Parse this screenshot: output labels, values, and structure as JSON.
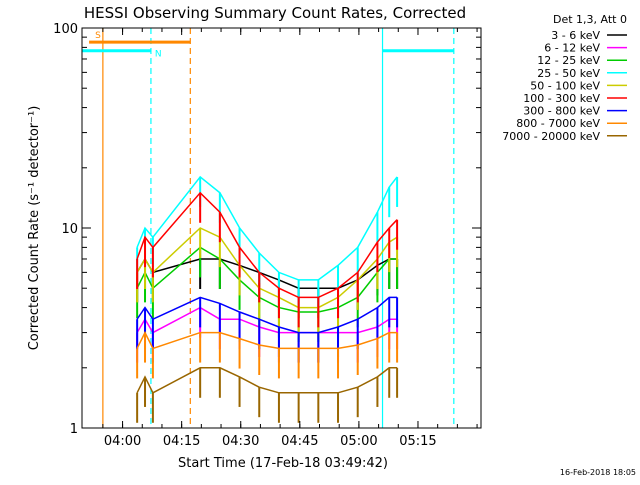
{
  "chart_data": {
    "type": "line",
    "title": "HESSI Observing Summary Count Rates, Corrected",
    "ylabel": "Corrected Count Rate (s⁻¹ detector⁻¹)",
    "xlabel": "Start Time (17-Feb-18 03:49:42)",
    "footer": "16-Feb-2018 18:05",
    "y_scale": "log",
    "ylim": [
      1,
      100
    ],
    "y_ticks": [
      {
        "value": 1,
        "label": "1"
      },
      {
        "value": 10,
        "label": "10"
      },
      {
        "value": 100,
        "label": "100"
      }
    ],
    "x_unit": "minutes after 03:49:42",
    "xlim": [
      0,
      101.3
    ],
    "x_ticks": [
      {
        "value": 10.3,
        "label": "04:00"
      },
      {
        "value": 25.3,
        "label": "04:15"
      },
      {
        "value": 40.3,
        "label": "04:30"
      },
      {
        "value": 55.3,
        "label": "04:45"
      },
      {
        "value": 70.3,
        "label": "05:00"
      },
      {
        "value": 85.3,
        "label": "05:15"
      }
    ],
    "legend": {
      "placement": "right",
      "header": "Det 1,3, Att 0",
      "entries": [
        {
          "label": "3 - 6 keV",
          "color": "#000000"
        },
        {
          "label": "6 - 12 keV",
          "color": "#ff00ff"
        },
        {
          "label": "12 - 25 keV",
          "color": "#00cc00"
        },
        {
          "label": "25 - 50 keV",
          "color": "#00ffff"
        },
        {
          "label": "50 - 100 keV",
          "color": "#cccc00"
        },
        {
          "label": "100 - 300 keV",
          "color": "#ff0000"
        },
        {
          "label": "300 - 800 keV",
          "color": "#0000ff"
        },
        {
          "label": "800 - 7000 keV",
          "color": "#ff8800"
        },
        {
          "label": "7000 - 20000 keV",
          "color": "#996600"
        }
      ]
    },
    "flags": [
      {
        "label": "S",
        "color": "#ff8800",
        "level": 85,
        "start": 1.8,
        "end": 27.5
      },
      {
        "label": "N",
        "color": "#00ffff",
        "level": 77,
        "start": 0,
        "end": 17.5
      }
    ],
    "flags_after": [
      {
        "color": "#00ffff",
        "level": 77,
        "start": 76.3,
        "end": 94.4
      }
    ],
    "markers": [
      {
        "color": "#ff8800",
        "x": 5.3,
        "style": "solid"
      },
      {
        "color": "#ff8800",
        "x": 27.5,
        "style": "dashed"
      },
      {
        "color": "#00ffff",
        "x": 17.5,
        "style": "dashed"
      },
      {
        "color": "#00ffff",
        "x": 76.3,
        "style": "solid"
      },
      {
        "color": "#00ffff",
        "x": 94.4,
        "style": "dashed"
      }
    ],
    "series": [
      {
        "name": "3 - 6 keV",
        "color": "#000000",
        "x": [
          14,
          16,
          18,
          30,
          35,
          40,
          45,
          50,
          55,
          60,
          65,
          70,
          75,
          78,
          80
        ],
        "y": [
          6,
          7,
          6,
          7,
          7,
          6.5,
          6,
          5.5,
          5,
          5,
          5,
          5.5,
          6.5,
          7,
          7
        ]
      },
      {
        "name": "6 - 12 keV",
        "color": "#ff00ff",
        "x": [
          14,
          16,
          18,
          30,
          35,
          40,
          45,
          50,
          55,
          60,
          65,
          70,
          75,
          78,
          80
        ],
        "y": [
          3,
          3.5,
          3,
          4,
          3.5,
          3.5,
          3.2,
          3,
          3,
          3,
          3,
          3,
          3.2,
          3.5,
          3.5
        ]
      },
      {
        "name": "12 - 25 keV",
        "color": "#00cc00",
        "x": [
          14,
          16,
          18,
          30,
          35,
          40,
          45,
          50,
          55,
          60,
          65,
          70,
          75,
          78,
          80
        ],
        "y": [
          5,
          6,
          5,
          8,
          7,
          5.5,
          4.5,
          4,
          3.8,
          3.8,
          4,
          4.5,
          6,
          7,
          7
        ]
      },
      {
        "name": "25 - 50 keV",
        "color": "#00ffff",
        "x": [
          14,
          16,
          18,
          30,
          35,
          40,
          45,
          50,
          55,
          60,
          65,
          70,
          75,
          78,
          80
        ],
        "y": [
          8,
          10,
          9,
          18,
          15,
          10,
          7.5,
          6,
          5.5,
          5.5,
          6.5,
          8,
          12,
          16,
          18
        ]
      },
      {
        "name": "50 - 100 keV",
        "color": "#cccc00",
        "x": [
          14,
          16,
          18,
          30,
          35,
          40,
          45,
          50,
          55,
          60,
          65,
          70,
          75,
          78,
          80
        ],
        "y": [
          6,
          7,
          6,
          10,
          9,
          6.5,
          5,
          4.5,
          4,
          4,
          4.5,
          5.5,
          7,
          8.5,
          9
        ]
      },
      {
        "name": "100 - 300 keV",
        "color": "#ff0000",
        "x": [
          14,
          16,
          18,
          30,
          35,
          40,
          45,
          50,
          55,
          60,
          65,
          70,
          75,
          78,
          80
        ],
        "y": [
          7,
          9,
          8,
          15,
          12,
          8,
          6,
          5,
          4.5,
          4.5,
          5,
          6,
          8.5,
          10,
          11
        ]
      },
      {
        "name": "300 - 800 keV",
        "color": "#0000ff",
        "x": [
          14,
          16,
          18,
          30,
          35,
          40,
          45,
          50,
          55,
          60,
          65,
          70,
          75,
          78,
          80
        ],
        "y": [
          3.5,
          4,
          3.5,
          4.5,
          4.2,
          3.8,
          3.5,
          3.2,
          3,
          3,
          3.2,
          3.5,
          4,
          4.5,
          4.5
        ]
      },
      {
        "name": "800 - 7000 keV",
        "color": "#ff8800",
        "x": [
          14,
          16,
          18,
          30,
          35,
          40,
          45,
          50,
          55,
          60,
          65,
          70,
          75,
          78,
          80
        ],
        "y": [
          2.5,
          3,
          2.5,
          3,
          3,
          2.8,
          2.6,
          2.5,
          2.5,
          2.5,
          2.5,
          2.6,
          2.8,
          3,
          3
        ]
      },
      {
        "name": "7000 - 20000 keV",
        "color": "#996600",
        "x": [
          14,
          16,
          18,
          30,
          35,
          40,
          45,
          50,
          55,
          60,
          65,
          70,
          75,
          78,
          80
        ],
        "y": [
          1.5,
          1.8,
          1.5,
          2,
          2,
          1.8,
          1.6,
          1.5,
          1.5,
          1.5,
          1.5,
          1.6,
          1.8,
          2,
          2
        ]
      }
    ]
  }
}
